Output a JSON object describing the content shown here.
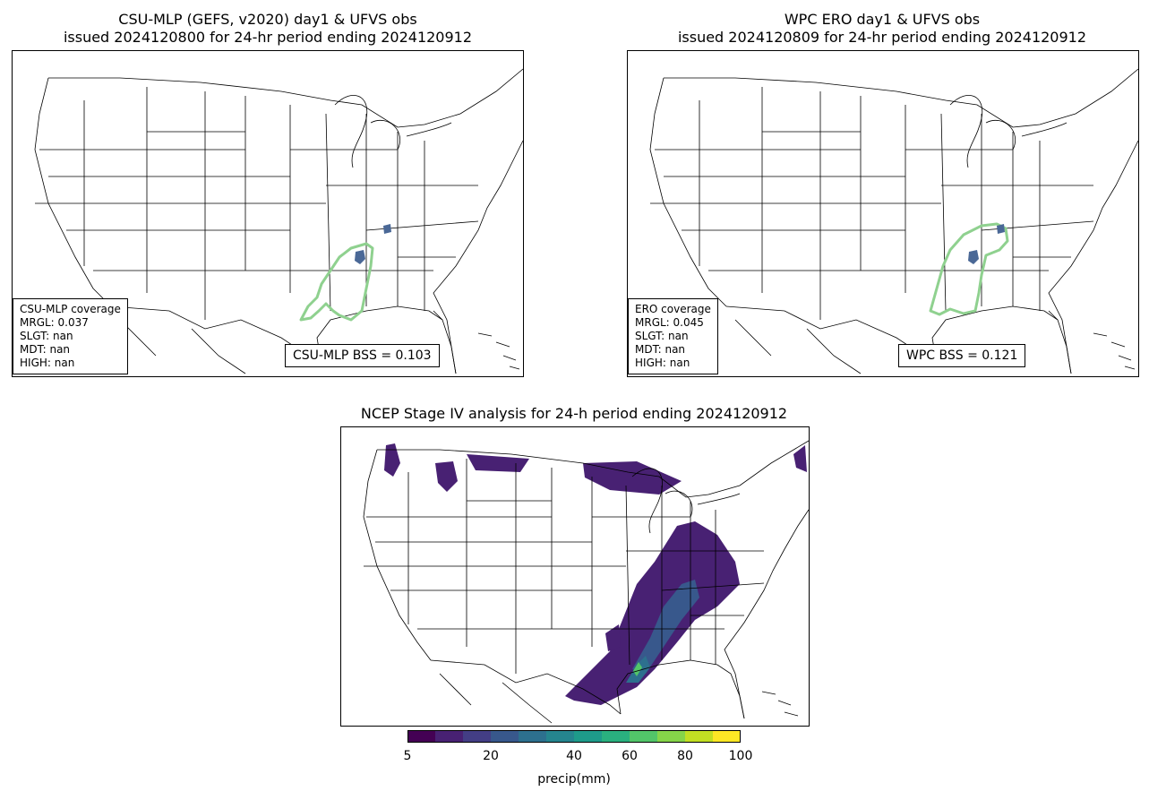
{
  "panels": [
    {
      "id": "csu",
      "title_line1": "CSU-MLP (GEFS, v2020) day1 & UFVS obs",
      "title_line2": "issued 2024120800 for 24-hr period ending 2024120912",
      "coverage": {
        "heading": "CSU-MLP coverage",
        "lines": [
          "MRGL: 0.037",
          "SLGT: nan",
          "MDT: nan",
          "HIGH: nan"
        ]
      },
      "bss": "CSU-MLP BSS = 0.103"
    },
    {
      "id": "wpc",
      "title_line1": "WPC ERO day1 & UFVS obs",
      "title_line2": "issued 2024120809 for 24-hr period ending 2024120912",
      "coverage": {
        "heading": "ERO coverage",
        "lines": [
          "MRGL: 0.045",
          "SLGT: nan",
          "MDT: nan",
          "HIGH: nan"
        ]
      },
      "bss": "WPC BSS = 0.121"
    }
  ],
  "analysis": {
    "title": "NCEP Stage IV analysis for 24-h period ending 2024120912",
    "colorbar": {
      "label": "precip(mm)",
      "bounds": [
        5,
        10,
        15,
        20,
        25,
        30,
        40,
        50,
        60,
        70,
        80,
        90,
        100
      ],
      "tick_labels": [
        "5",
        "20",
        "40",
        "60",
        "80",
        "100"
      ],
      "colors": [
        "#440154",
        "#482173",
        "#433e85",
        "#38588c",
        "#2d708e",
        "#25858e",
        "#1e9b8a",
        "#2ab07f",
        "#52c569",
        "#86d549",
        "#c2df23",
        "#fde725"
      ]
    }
  },
  "colors": {
    "mrgl_contour": "#8fd18f",
    "ufvs_obs": "#4a6896",
    "map_lines": "#000000"
  }
}
